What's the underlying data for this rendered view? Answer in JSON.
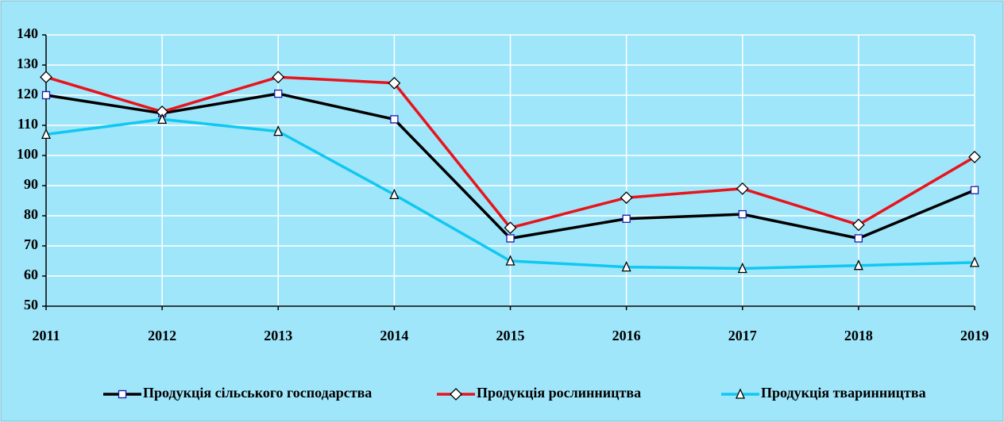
{
  "chart_data": {
    "type": "line",
    "categories": [
      "2011",
      "2012",
      "2013",
      "2014",
      "2015",
      "2016",
      "2017",
      "2018",
      "2019"
    ],
    "series": [
      {
        "name": "Продукція сільського господарства",
        "color": "#000000",
        "marker": "square",
        "marker_edge": "#1a1aa8",
        "values": [
          120,
          114,
          120.5,
          112,
          72.5,
          79,
          80.5,
          72.5,
          88.5
        ]
      },
      {
        "name": "Продукція рослинництва",
        "color": "#e8141c",
        "marker": "diamond",
        "marker_edge": "#000000",
        "values": [
          126,
          114.5,
          126,
          124,
          76,
          86,
          89,
          77,
          99.5
        ]
      },
      {
        "name": "Продукція тваринництва",
        "color": "#10c8f0",
        "marker": "triangle",
        "marker_edge": "#000000",
        "values": [
          107,
          112,
          108,
          87,
          65,
          63,
          62.5,
          63.5,
          64.5
        ]
      }
    ],
    "ylim": [
      50,
      140
    ],
    "yticks": [
      50,
      60,
      70,
      80,
      90,
      100,
      110,
      120,
      130,
      140
    ],
    "grid": true,
    "legend": "bottom",
    "background": "#9fe6fb"
  }
}
